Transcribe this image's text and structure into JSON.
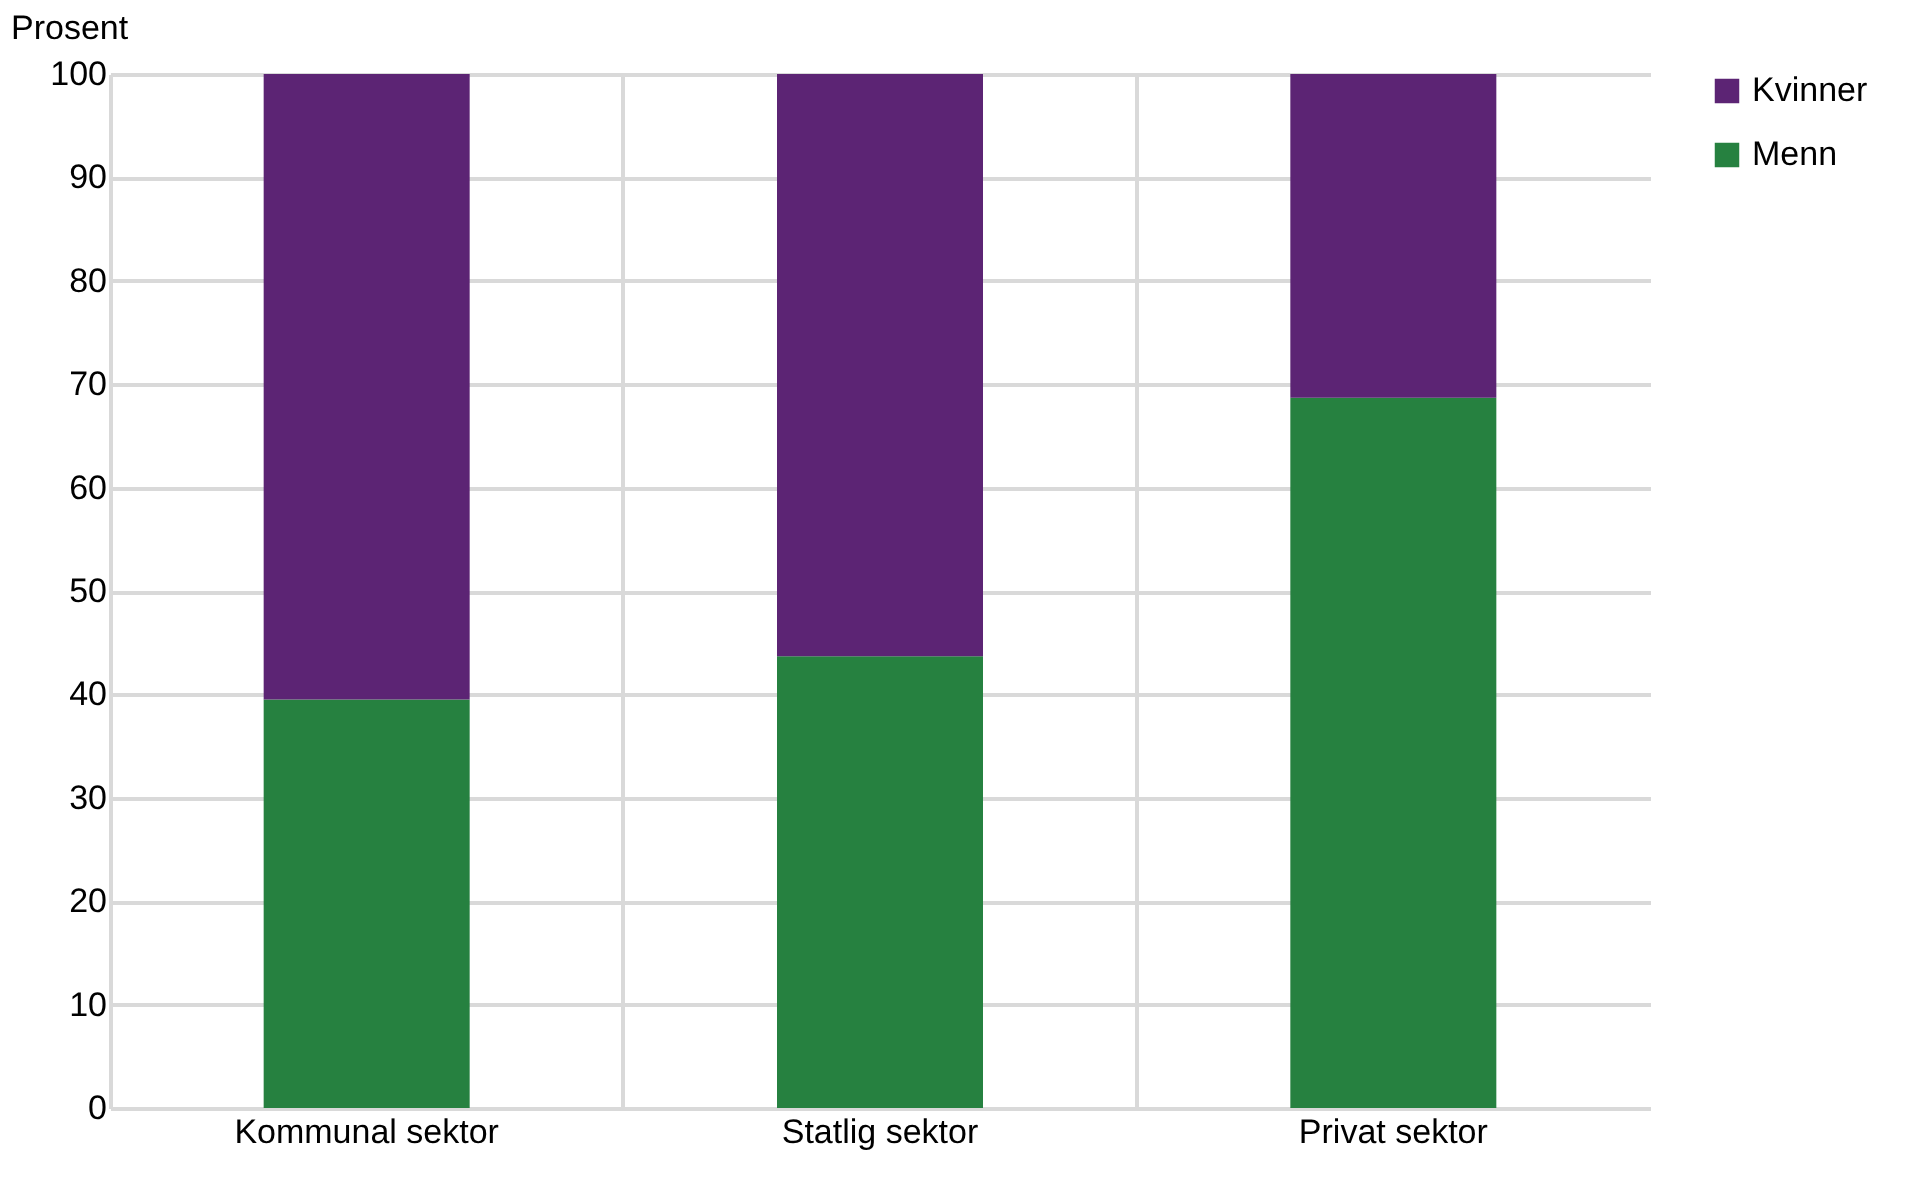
{
  "chart_data": {
    "type": "bar",
    "stacked": true,
    "ylabel": "Prosent",
    "categories": [
      "Kommunal sektor",
      "Statlig sektor",
      "Privat sektor"
    ],
    "series": [
      {
        "name": "Menn",
        "color": "#268140",
        "values": [
          39.5,
          43.7,
          68.7
        ]
      },
      {
        "name": "Kvinner",
        "color": "#5c2474",
        "values": [
          60.5,
          56.3,
          31.3
        ]
      }
    ],
    "ylim": [
      0,
      100
    ],
    "yticks": [
      0,
      10,
      20,
      30,
      40,
      50,
      60,
      70,
      80,
      90,
      100
    ],
    "grid": true,
    "legend": "top right"
  }
}
